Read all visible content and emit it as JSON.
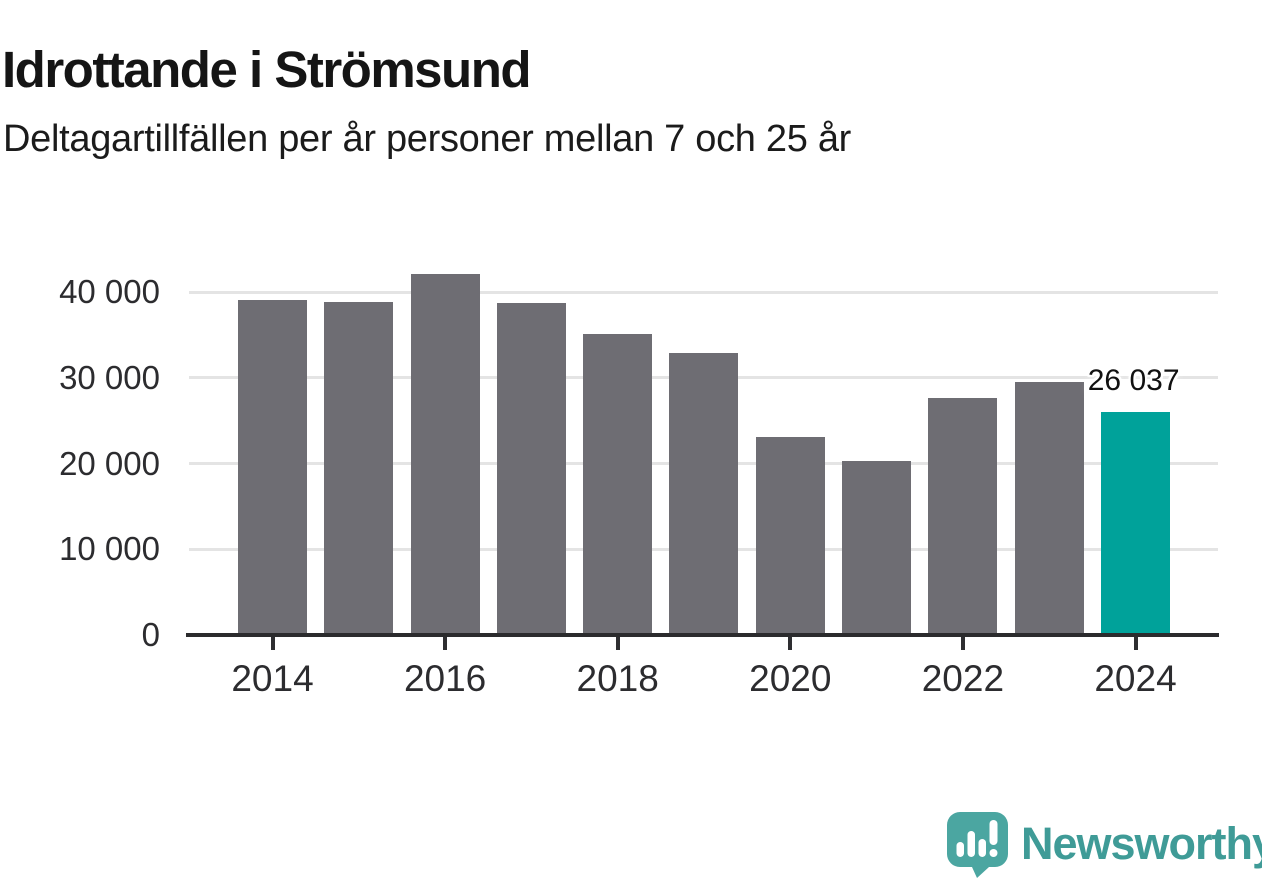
{
  "header": {
    "title": "Idrottande i Strömsund",
    "subtitle": "Deltagartillfällen per år personer mellan 7 och 25 år"
  },
  "chart_data": {
    "type": "bar",
    "title": "Idrottande i Strömsund",
    "subtitle": "Deltagartillfällen per år personer mellan 7 och 25 år",
    "categories": [
      "2014",
      "2015",
      "2016",
      "2017",
      "2018",
      "2019",
      "2020",
      "2021",
      "2022",
      "2023",
      "2024"
    ],
    "values": [
      39100,
      38850,
      42050,
      38700,
      35050,
      32950,
      23050,
      20350,
      27600,
      29550,
      26037
    ],
    "highlight_index": 10,
    "highlight_label": "26 037",
    "xtick_labels": [
      "2014",
      "2016",
      "2018",
      "2020",
      "2022",
      "2024"
    ],
    "ytick_labels": [
      "0",
      "10 000",
      "20 000",
      "30 000",
      "40 000"
    ],
    "ytick_values": [
      0,
      10000,
      20000,
      30000,
      40000
    ],
    "ylim": [
      0,
      42500
    ],
    "grid": "horizontal-only",
    "legend": "none",
    "bar_color": "#6e6d73",
    "highlight_color": "#00a29a",
    "axis_color": "#2b2b2d",
    "gridline_color": "#e4e4e4"
  },
  "footer": {
    "brand": "Newsworthy",
    "brand_color": "#3f9b97",
    "logo_color": "#4ba6a1",
    "logo_icon": "newsworthy-speech-bubble-bar-chart-icon"
  }
}
